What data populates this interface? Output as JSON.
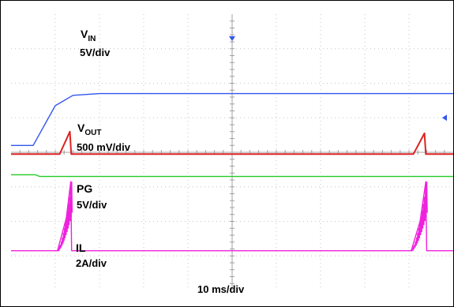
{
  "chart_data": {
    "type": "line",
    "title": "",
    "xlabel": "10 ms/div",
    "x_unit": "ms",
    "x_per_div": 10,
    "x_divisions": 10,
    "y_divisions": 8,
    "grid": true,
    "series": [
      {
        "key": "vin",
        "name": "V",
        "name_sub": "IN",
        "scale": "5V/div",
        "color": "#3355ee",
        "points": [
          [
            0,
            4.2
          ],
          [
            0.5,
            4.2
          ],
          [
            1.0,
            5.35
          ],
          [
            1.4,
            5.65
          ],
          [
            2.0,
            5.7
          ],
          [
            5.0,
            5.7
          ],
          [
            10.0,
            5.7
          ]
        ]
      },
      {
        "key": "vout",
        "name": "V",
        "name_sub": "OUT",
        "scale": "500 mV/div",
        "color": "#dd2222",
        "points": [
          [
            0,
            3.95
          ],
          [
            1.1,
            3.95
          ],
          [
            1.33,
            4.6
          ],
          [
            1.36,
            3.95
          ],
          [
            5.0,
            3.95
          ],
          [
            9.1,
            3.95
          ],
          [
            9.35,
            4.55
          ],
          [
            9.38,
            3.95
          ],
          [
            10.0,
            3.95
          ]
        ]
      },
      {
        "key": "pg",
        "name": "PG",
        "scale": "5V/div",
        "color": "#22cc22",
        "points": [
          [
            0,
            3.35
          ],
          [
            0.55,
            3.35
          ],
          [
            0.65,
            3.3
          ],
          [
            5.0,
            3.3
          ],
          [
            10.0,
            3.3
          ]
        ]
      },
      {
        "key": "il",
        "name": "IL",
        "scale": "2A/div",
        "color": "#ee22dd",
        "points": [
          [
            0,
            1.15
          ],
          [
            1.05,
            1.15
          ],
          [
            1.25,
            2.1
          ],
          [
            1.35,
            3.15
          ],
          [
            1.37,
            1.15
          ],
          [
            5.0,
            1.15
          ],
          [
            9.05,
            1.15
          ],
          [
            9.25,
            2.0
          ],
          [
            9.38,
            3.15
          ],
          [
            9.4,
            1.15
          ],
          [
            10.0,
            1.15
          ]
        ]
      }
    ],
    "markers": {
      "trigger_color": "#3355ee"
    }
  }
}
